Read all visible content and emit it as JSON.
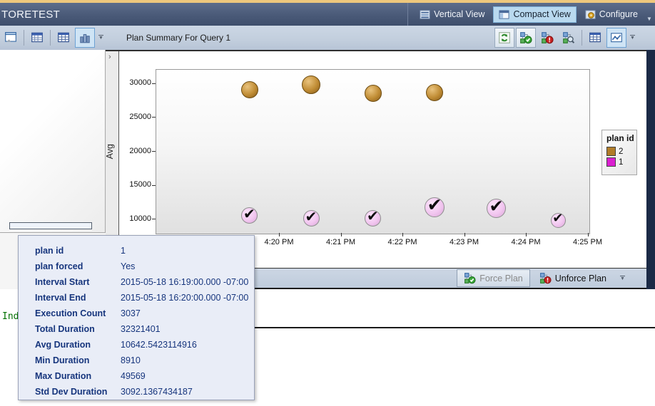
{
  "title_bar": {
    "title": "TORETEST",
    "buttons": [
      {
        "label": "Vertical View",
        "icon": "vertical-view-icon",
        "selected": false
      },
      {
        "label": "Compact View",
        "icon": "compact-view-icon",
        "selected": true
      },
      {
        "label": "Configure",
        "icon": "configure-icon",
        "selected": false
      }
    ]
  },
  "toolbar": {
    "view_icons": [
      "query-text-view-icon",
      "grid-extended-view-icon",
      "grid-view-icon",
      "chart-view-icon"
    ],
    "label": "Plan Summary For Query 1",
    "action_icons": [
      "refresh-icon",
      "force-plan-icon",
      "unforce-plan-icon",
      "compare-plans-icon",
      "summary-grid-icon",
      "summary-chart-icon"
    ]
  },
  "chart_data": {
    "type": "scatter",
    "title": "",
    "xlabel": "",
    "ylabel": "Avg",
    "x_ticks": [
      "4:20 PM",
      "4:21 PM",
      "4:22 PM",
      "4:23 PM",
      "4:24 PM",
      "4:25 PM"
    ],
    "y_ticks": [
      30000,
      25000,
      20000,
      15000,
      10000
    ],
    "ylim": [
      7900,
      32100
    ],
    "grid": false,
    "legend_position": "right",
    "legend": {
      "title": "plan id",
      "entries": [
        {
          "label": "2",
          "color": "#b07c28"
        },
        {
          "label": "1",
          "color": "#da1fd0"
        }
      ]
    },
    "series": [
      {
        "name": "2",
        "color": "#b07c28",
        "marker": "circle",
        "points": [
          {
            "time": "4:19:30 PM",
            "value": 29260,
            "size": 22
          },
          {
            "time": "4:20:30 PM",
            "value": 30000,
            "size": 24
          },
          {
            "time": "4:21:30 PM",
            "value": 28730,
            "size": 22
          },
          {
            "time": "4:22:30 PM",
            "value": 28840,
            "size": 22
          }
        ]
      },
      {
        "name": "1",
        "color": "#da1fd0",
        "marker": "circle-check",
        "points": [
          {
            "time": "4:19:30 PM",
            "value": 10642,
            "size": 21
          },
          {
            "time": "4:20:30 PM",
            "value": 10250,
            "size": 21
          },
          {
            "time": "4:21:30 PM",
            "value": 10300,
            "size": 21
          },
          {
            "time": "4:22:30 PM",
            "value": 11850,
            "size": 26
          },
          {
            "time": "4:23:30 PM",
            "value": 11700,
            "size": 25
          },
          {
            "time": "4:24:30 PM",
            "value": 9950,
            "size": 19
          }
        ]
      }
    ]
  },
  "force_toolbar": {
    "force_label": "Force Plan",
    "force_enabled": false,
    "unforce_label": "Unforce Plan",
    "unforce_enabled": true
  },
  "tooltip": {
    "rows": [
      {
        "label": "plan id",
        "value": "1"
      },
      {
        "label": "plan forced",
        "value": "Yes"
      },
      {
        "label": "Interval Start",
        "value": "2015-05-18 16:19:00.000 -07:00"
      },
      {
        "label": "Interval End",
        "value": "2015-05-18 16:20:00.000 -07:00"
      },
      {
        "label": "Execution Count",
        "value": "3037"
      },
      {
        "label": "Total Duration",
        "value": "32321401"
      },
      {
        "label": "Avg Duration",
        "value": "10642.5423114916"
      },
      {
        "label": "Min Duration",
        "value": "8910"
      },
      {
        "label": "Max Duration",
        "value": "49569"
      },
      {
        "label": "Std Dev Duration",
        "value": "3092.1367434187"
      }
    ]
  },
  "misc": {
    "expander_glyph": "›",
    "bottom_code_text": "Ind",
    "avg_axis_title": "Avg"
  }
}
